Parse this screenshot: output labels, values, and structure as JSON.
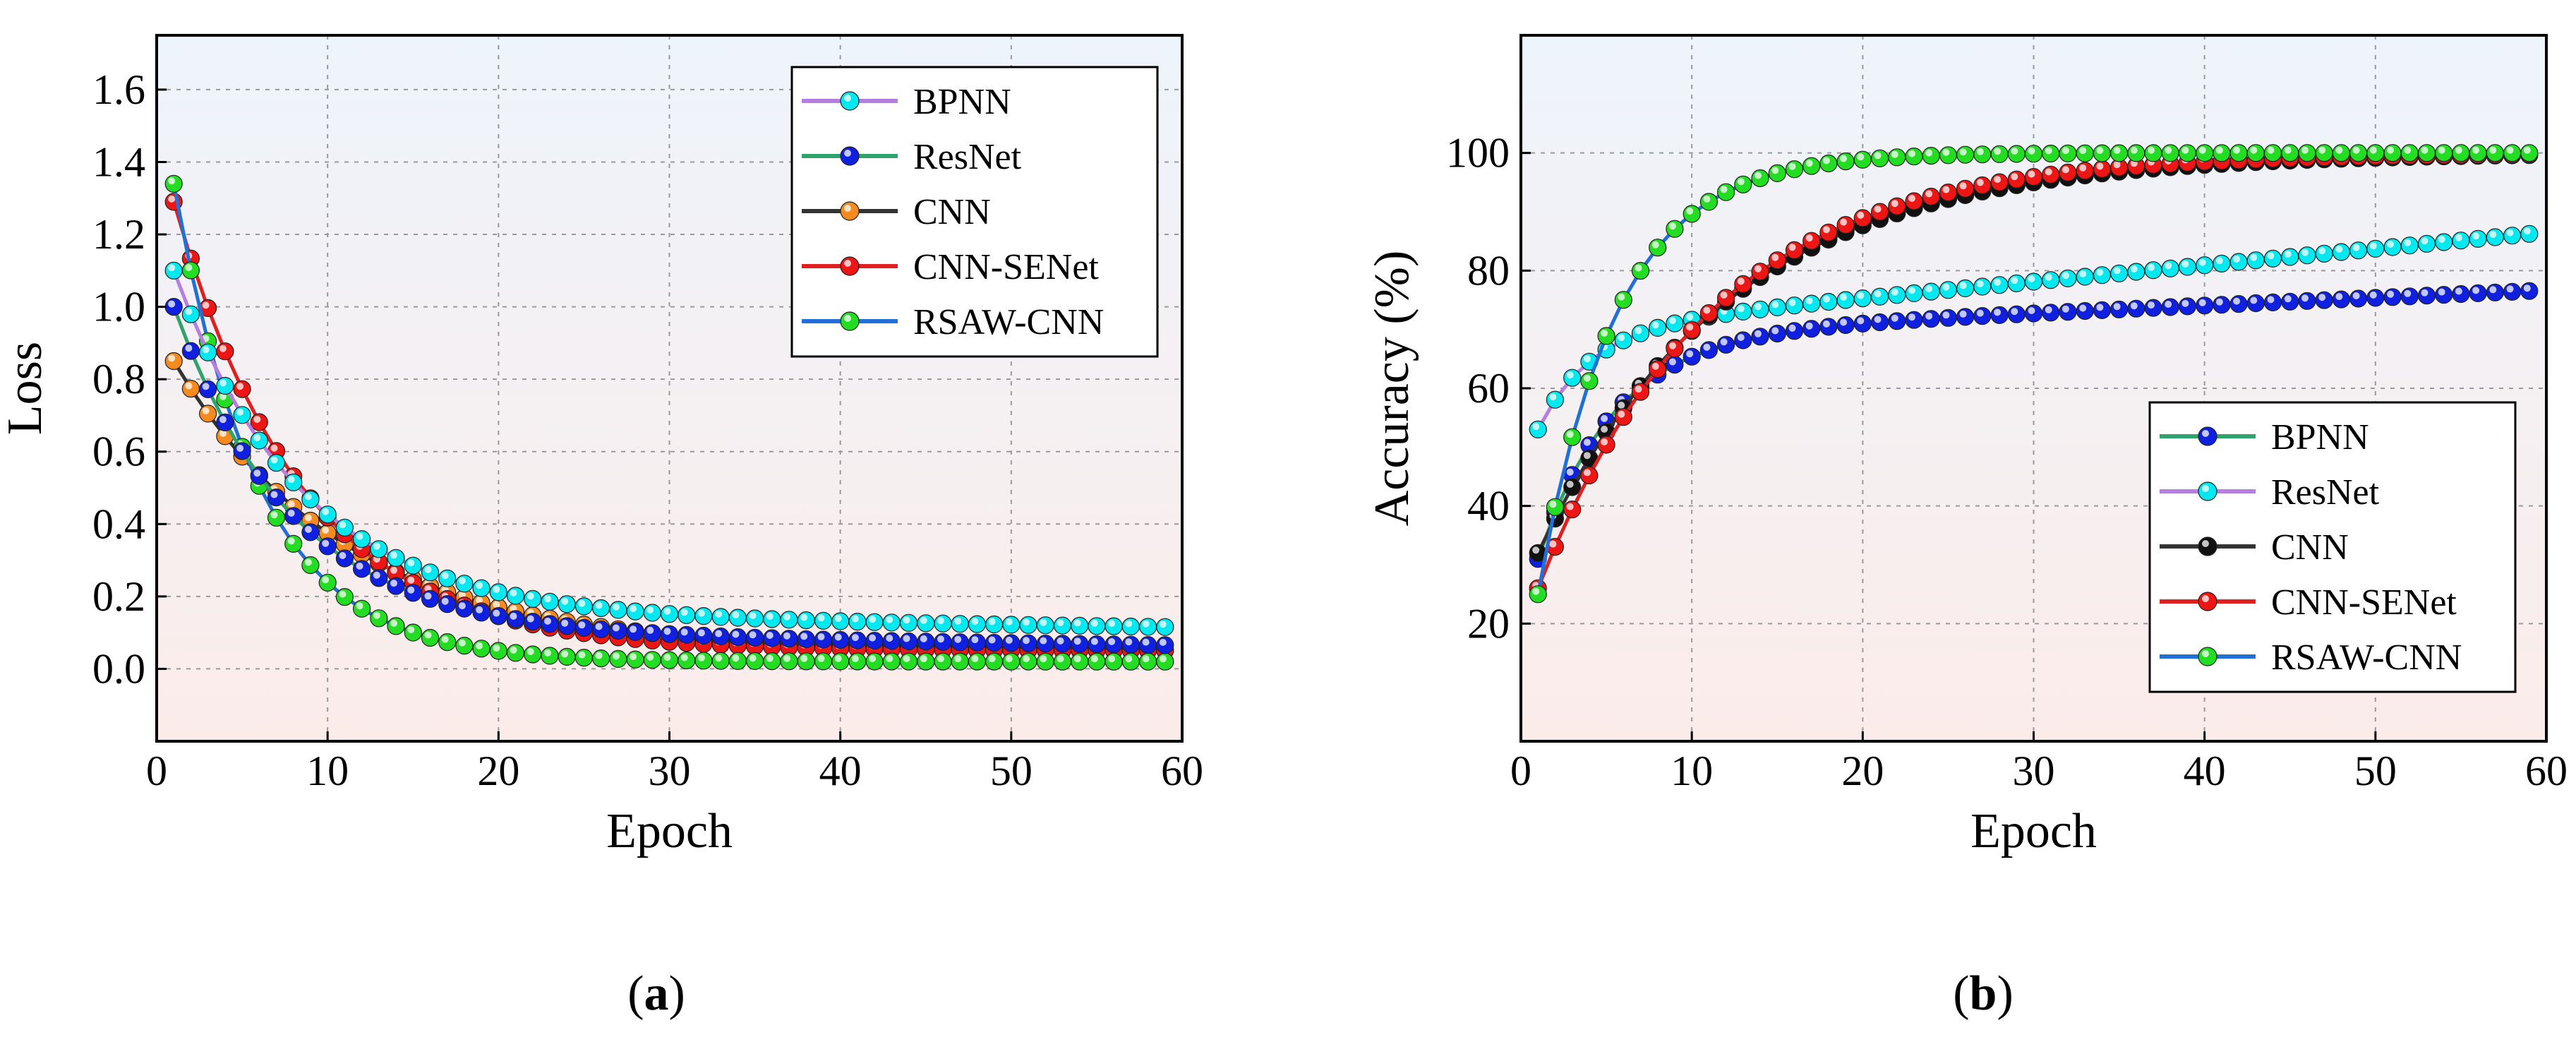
{
  "figure": {
    "panels": [
      {
        "label_open": "(",
        "label_letter": "a",
        "label_close": ")"
      },
      {
        "label_open": "(",
        "label_letter": "b",
        "label_close": ")"
      }
    ]
  },
  "chart_data": [
    {
      "type": "line",
      "title": "",
      "xlabel": "Epoch",
      "ylabel": "Loss",
      "xlim": [
        0,
        60
      ],
      "ylim": [
        -0.2,
        1.75
      ],
      "xticks": [
        0,
        10,
        20,
        30,
        40,
        50,
        60
      ],
      "yticks": [
        0.0,
        0.2,
        0.4,
        0.6,
        0.8,
        1.0,
        1.2,
        1.4,
        1.6
      ],
      "ytick_labels": [
        "0.0",
        "0.2",
        "0.4",
        "0.6",
        "0.8",
        "1.0",
        "1.2",
        "1.4",
        "1.6"
      ],
      "grid": true,
      "background_gradient": [
        "#eef4fb",
        "#fbecea"
      ],
      "legend": {
        "placement": "top-right",
        "entries": [
          {
            "label": "BPNN",
            "line": "#b57ee0",
            "marker": "#00e8f0"
          },
          {
            "label": "ResNet",
            "line": "#2fa36b",
            "marker": "#1020e0"
          },
          {
            "label": "CNN",
            "line": "#333333",
            "marker": "#f58a1f"
          },
          {
            "label": "CNN-SENet",
            "line": "#e02020",
            "marker": "#ee1515"
          },
          {
            "label": "RSAW-CNN",
            "line": "#2070d8",
            "marker": "#22dd22"
          }
        ]
      },
      "series": [
        {
          "name": "CNN",
          "color": "#f58a1f",
          "line": "#333333",
          "model": {
            "a": 0.85,
            "b": 0.75,
            "k": 0.1,
            "e": 0.05,
            "m": 0.0
          }
        },
        {
          "name": "CNN-SENet",
          "color": "#ee1515",
          "line": "#e02020",
          "model": {
            "a": 1.29,
            "b": 1.25,
            "k": 0.135,
            "e": 0.05,
            "m": 0.0
          }
        },
        {
          "name": "RSAW-CNN",
          "color": "#22dd22",
          "line": "#2070d8",
          "model": {
            "a": 1.34,
            "b": 1.32,
            "k": 0.2,
            "e": 0.02,
            "m": 0.0
          }
        },
        {
          "name": "ResNet",
          "color": "#1020e0",
          "line": "#2fa36b",
          "model": {
            "a": 1.0,
            "b": 0.9,
            "k": 0.145,
            "e": 0.1,
            "m": -0.0006
          }
        },
        {
          "name": "BPNN",
          "color": "#00e8f0",
          "line": "#b57ee0",
          "model": {
            "a": 1.1,
            "b": 0.95,
            "k": 0.135,
            "e": 0.15,
            "m": -0.0006
          }
        }
      ]
    },
    {
      "type": "line",
      "title": "",
      "xlabel": "Epoch",
      "ylabel": "Accuracy (%)",
      "xlim": [
        0,
        60
      ],
      "ylim": [
        0,
        120
      ],
      "xticks": [
        0,
        10,
        20,
        30,
        40,
        50,
        60
      ],
      "yticks": [
        20,
        40,
        60,
        80,
        100
      ],
      "ytick_labels": [
        "20",
        "40",
        "60",
        "80",
        "100"
      ],
      "grid": true,
      "background_gradient": [
        "#eef4fb",
        "#fbecea"
      ],
      "legend": {
        "placement": "bottom-right",
        "entries": [
          {
            "label": "BPNN",
            "line": "#2fa36b",
            "marker": "#1020e0"
          },
          {
            "label": "ResNet",
            "line": "#b57ee0",
            "marker": "#00e8f0"
          },
          {
            "label": "CNN",
            "line": "#333333",
            "marker": "#111111"
          },
          {
            "label": "CNN-SENet",
            "line": "#e02020",
            "marker": "#ee1515"
          },
          {
            "label": "RSAW-CNN",
            "line": "#2070d8",
            "marker": "#22dd22"
          }
        ]
      },
      "series": [
        {
          "name": "BPNN",
          "color": "#1020e0",
          "line": "#2fa36b",
          "model": {
            "a": 31,
            "b": 38,
            "k": 0.23,
            "e": 69,
            "m": 0.13
          }
        },
        {
          "name": "ResNet",
          "color": "#00e8f0",
          "line": "#b57ee0",
          "model": {
            "a": 53,
            "b": 17,
            "k": 0.33,
            "e": 70,
            "m": 0.28
          }
        },
        {
          "name": "CNN",
          "color": "#111111",
          "line": "#333333",
          "model": {
            "a": 32,
            "b": 70,
            "k": 0.09,
            "e": 100,
            "m": 0.0
          }
        },
        {
          "name": "CNN-SENet",
          "color": "#ee1515",
          "line": "#e02020",
          "model": {
            "a": 26,
            "b": 74,
            "k": 0.1,
            "e": 100,
            "m": 0.0
          }
        },
        {
          "name": "RSAW-CNN",
          "color": "#22dd22",
          "line": "#2070d8",
          "model": {
            "a": 25,
            "b": 75,
            "k": 0.22,
            "e": 100,
            "m": 0.0
          }
        }
      ]
    }
  ]
}
